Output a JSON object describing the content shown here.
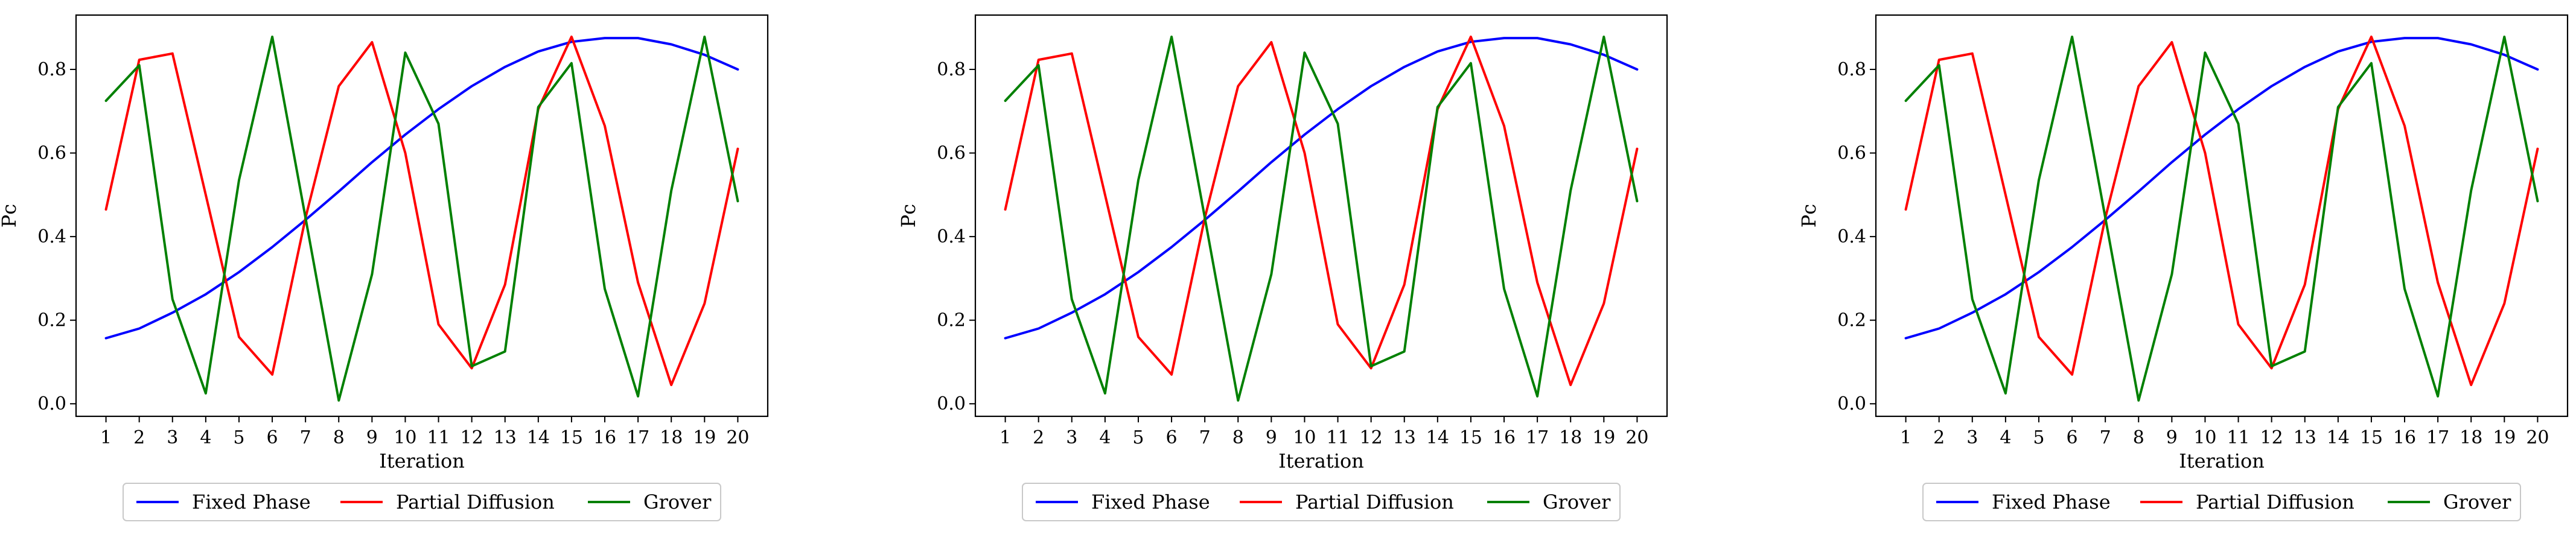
{
  "chart_data": [
    {
      "type": "line",
      "xlabel": "Iteration",
      "ylabel": "Pc",
      "x": [
        1,
        2,
        3,
        4,
        5,
        6,
        7,
        8,
        9,
        10,
        11,
        12,
        13,
        14,
        15,
        16,
        17,
        18,
        19,
        20
      ],
      "xlim": [
        0.1,
        20.9
      ],
      "ylim": [
        -0.03,
        0.93
      ],
      "yticks": [
        0.0,
        0.2,
        0.4,
        0.6,
        0.8
      ],
      "ytick_labels": [
        "0.0",
        "0.2",
        "0.4",
        "0.6",
        "0.8"
      ],
      "grid": false,
      "legend_position": "below",
      "series": [
        {
          "name": "Fixed Phase",
          "color": "#0000ff",
          "values": [
            0.157,
            0.18,
            0.218,
            0.262,
            0.315,
            0.375,
            0.44,
            0.508,
            0.578,
            0.644,
            0.705,
            0.76,
            0.806,
            0.843,
            0.866,
            0.875,
            0.875,
            0.86,
            0.835,
            0.8
          ]
        },
        {
          "name": "Partial Diffusion",
          "color": "#ff0000",
          "values": [
            0.465,
            0.823,
            0.838,
            0.5,
            0.16,
            0.07,
            0.445,
            0.76,
            0.865,
            0.6,
            0.19,
            0.085,
            0.285,
            0.705,
            0.878,
            0.665,
            0.29,
            0.045,
            0.24,
            0.61
          ]
        },
        {
          "name": "Grover",
          "color": "#008000",
          "values": [
            0.725,
            0.81,
            0.25,
            0.025,
            0.535,
            0.878,
            0.445,
            0.008,
            0.31,
            0.84,
            0.67,
            0.09,
            0.125,
            0.71,
            0.815,
            0.275,
            0.018,
            0.51,
            0.878,
            0.485
          ]
        }
      ]
    },
    {
      "type": "line",
      "xlabel": "Iteration",
      "ylabel": "Pc",
      "x": [
        1,
        2,
        3,
        4,
        5,
        6,
        7,
        8,
        9,
        10,
        11,
        12,
        13,
        14,
        15,
        16,
        17,
        18,
        19,
        20
      ],
      "xlim": [
        0.1,
        20.9
      ],
      "ylim": [
        -0.03,
        0.93
      ],
      "yticks": [
        0.0,
        0.2,
        0.4,
        0.6,
        0.8
      ],
      "ytick_labels": [
        "0.0",
        "0.2",
        "0.4",
        "0.6",
        "0.8"
      ],
      "grid": false,
      "legend_position": "below",
      "series": [
        {
          "name": "Fixed Phase",
          "color": "#0000ff",
          "values": [
            0.157,
            0.18,
            0.218,
            0.262,
            0.315,
            0.375,
            0.44,
            0.508,
            0.578,
            0.644,
            0.705,
            0.76,
            0.806,
            0.843,
            0.866,
            0.875,
            0.875,
            0.86,
            0.835,
            0.8
          ]
        },
        {
          "name": "Partial Diffusion",
          "color": "#ff0000",
          "values": [
            0.465,
            0.823,
            0.838,
            0.5,
            0.16,
            0.07,
            0.445,
            0.76,
            0.865,
            0.6,
            0.19,
            0.085,
            0.285,
            0.705,
            0.878,
            0.665,
            0.29,
            0.045,
            0.24,
            0.61
          ]
        },
        {
          "name": "Grover",
          "color": "#008000",
          "values": [
            0.725,
            0.81,
            0.25,
            0.025,
            0.535,
            0.878,
            0.445,
            0.008,
            0.31,
            0.84,
            0.67,
            0.09,
            0.125,
            0.71,
            0.815,
            0.275,
            0.018,
            0.51,
            0.878,
            0.485
          ]
        }
      ]
    },
    {
      "type": "line",
      "xlabel": "Iteration",
      "ylabel": "Pc",
      "x": [
        1,
        2,
        3,
        4,
        5,
        6,
        7,
        8,
        9,
        10,
        11,
        12,
        13,
        14,
        15,
        16,
        17,
        18,
        19,
        20
      ],
      "xlim": [
        0.1,
        20.9
      ],
      "ylim": [
        -0.03,
        0.93
      ],
      "yticks": [
        0.0,
        0.2,
        0.4,
        0.6,
        0.8
      ],
      "ytick_labels": [
        "0.0",
        "0.2",
        "0.4",
        "0.6",
        "0.8"
      ],
      "grid": false,
      "legend_position": "below",
      "series": [
        {
          "name": "Fixed Phase",
          "color": "#0000ff",
          "values": [
            0.157,
            0.18,
            0.218,
            0.262,
            0.315,
            0.375,
            0.44,
            0.508,
            0.578,
            0.644,
            0.705,
            0.76,
            0.806,
            0.843,
            0.866,
            0.875,
            0.875,
            0.86,
            0.835,
            0.8
          ]
        },
        {
          "name": "Partial Diffusion",
          "color": "#ff0000",
          "values": [
            0.465,
            0.823,
            0.838,
            0.5,
            0.16,
            0.07,
            0.445,
            0.76,
            0.865,
            0.6,
            0.19,
            0.085,
            0.285,
            0.705,
            0.878,
            0.665,
            0.29,
            0.045,
            0.24,
            0.61
          ]
        },
        {
          "name": "Grover",
          "color": "#008000",
          "values": [
            0.725,
            0.81,
            0.25,
            0.025,
            0.535,
            0.878,
            0.445,
            0.008,
            0.31,
            0.84,
            0.67,
            0.09,
            0.125,
            0.71,
            0.815,
            0.275,
            0.018,
            0.51,
            0.878,
            0.485
          ]
        }
      ]
    }
  ]
}
